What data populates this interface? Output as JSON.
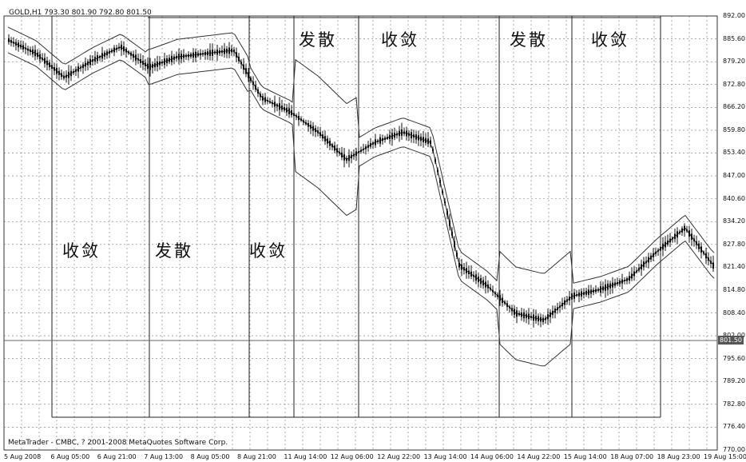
{
  "header": {
    "symbol_line": "GOLD,H1  793.30 801.90 792.80 801.50"
  },
  "footer": {
    "credit": "MetaTrader - CMBC, ? 2001-2008 MetaQuotes Software Corp."
  },
  "zones": [
    {
      "label": "收敛"
    },
    {
      "label": "发散"
    },
    {
      "label": "收敛"
    },
    {
      "label": "发散"
    },
    {
      "label": "收敛"
    },
    {
      "label": "发散"
    },
    {
      "label": "收敛"
    }
  ],
  "chart_data": {
    "type": "candlestick",
    "title": "GOLD,H1  793.30 801.90 792.80 801.50",
    "current_price": "801.50",
    "y_range": [
      768.0,
      895.0
    ],
    "grid": true,
    "y_ticks": [
      "892.00",
      "885.60",
      "879.20",
      "872.80",
      "866.20",
      "859.80",
      "853.40",
      "847.00",
      "840.60",
      "834.20",
      "827.80",
      "821.40",
      "814.80",
      "808.40",
      "802.00",
      "795.60",
      "789.20",
      "782.80",
      "776.40",
      "770.00"
    ],
    "x_ticks": [
      "5 Aug 2008",
      "6 Aug 05:00",
      "6 Aug 21:00",
      "7 Aug 13:00",
      "8 Aug 05:00",
      "8 Aug 21:00",
      "11 Aug 14:00",
      "12 Aug 06:00",
      "12 Aug 22:00",
      "13 Aug 14:00",
      "14 Aug 06:00",
      "14 Aug 22:00",
      "15 Aug 14:00",
      "18 Aug 07:00",
      "18 Aug 23:00",
      "19 Aug 15:00"
    ],
    "price_series": {
      "name": "close",
      "x": [
        0,
        10,
        20,
        30,
        40,
        50,
        60,
        70,
        80,
        90,
        100,
        110,
        120,
        130,
        140,
        150,
        160,
        170,
        180,
        190,
        200,
        210,
        220,
        230,
        240,
        250
      ],
      "values": [
        888,
        884,
        877,
        882,
        886,
        880,
        883,
        884,
        885,
        871,
        867,
        861,
        853,
        858,
        861,
        858,
        822,
        816,
        808,
        806,
        813,
        815,
        818,
        826,
        833,
        822
      ]
    }
  }
}
